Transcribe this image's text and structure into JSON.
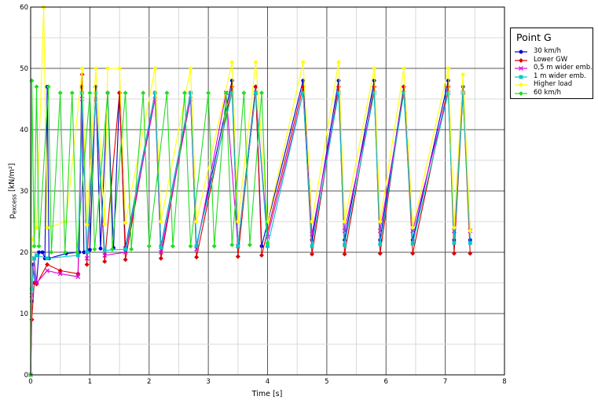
{
  "chart_data": {
    "type": "line",
    "xlabel": "Time [s]",
    "ylabel_main": "p",
    "ylabel_sub": "excess",
    "ylabel_unit": " [kN/m²]",
    "xlim": [
      0,
      8
    ],
    "ylim": [
      0,
      60
    ],
    "xticks": [
      0,
      1,
      2,
      3,
      4,
      5,
      6,
      7,
      8
    ],
    "yticks": [
      0,
      10,
      20,
      30,
      40,
      50,
      60
    ],
    "grid": true,
    "legend": {
      "title": "Point G",
      "placement": "right"
    },
    "series": [
      {
        "name": "30 km/h",
        "color": "#0000cc",
        "marker": "circle",
        "points": [
          [
            0,
            0
          ],
          [
            0.02,
            12
          ],
          [
            0.04,
            18
          ],
          [
            0.08,
            15
          ],
          [
            0.1,
            15
          ],
          [
            0.14,
            20
          ],
          [
            0.2,
            20
          ],
          [
            0.24,
            19
          ],
          [
            0.28,
            47
          ],
          [
            0.31,
            19
          ],
          [
            0.6,
            19.8
          ],
          [
            0.82,
            20
          ],
          [
            0.86,
            47
          ],
          [
            0.9,
            20
          ],
          [
            1.0,
            20.4
          ],
          [
            1.1,
            47
          ],
          [
            1.18,
            20.6
          ],
          [
            1.3,
            46
          ],
          [
            1.4,
            20.7
          ],
          [
            1.5,
            46
          ],
          [
            1.6,
            20.8
          ],
          [
            2.1,
            46
          ],
          [
            2.2,
            21
          ],
          [
            2.7,
            46
          ],
          [
            2.8,
            21
          ],
          [
            3.4,
            48
          ],
          [
            3.5,
            21
          ],
          [
            3.8,
            47
          ],
          [
            3.9,
            21
          ],
          [
            4.6,
            48
          ],
          [
            4.75,
            22
          ],
          [
            5.2,
            48
          ],
          [
            5.3,
            22
          ],
          [
            5.8,
            48
          ],
          [
            5.9,
            22
          ],
          [
            6.3,
            47
          ],
          [
            6.45,
            22
          ],
          [
            7.05,
            48
          ],
          [
            7.15,
            22
          ],
          [
            7.3,
            47
          ],
          [
            7.42,
            22
          ]
        ]
      },
      {
        "name": "Lower GW",
        "color": "#dd0000",
        "marker": "diamond",
        "points": [
          [
            0,
            0
          ],
          [
            0.02,
            9
          ],
          [
            0.06,
            15
          ],
          [
            0.1,
            14.8
          ],
          [
            0.28,
            18
          ],
          [
            0.5,
            17
          ],
          [
            0.8,
            16.5
          ],
          [
            0.87,
            49
          ],
          [
            0.95,
            18
          ],
          [
            1.1,
            46
          ],
          [
            1.25,
            18.5
          ],
          [
            1.5,
            46
          ],
          [
            1.6,
            18.8
          ],
          [
            2.1,
            46
          ],
          [
            2.2,
            19
          ],
          [
            2.7,
            46
          ],
          [
            2.8,
            19.2
          ],
          [
            3.4,
            47
          ],
          [
            3.5,
            19.3
          ],
          [
            3.8,
            47
          ],
          [
            3.9,
            19.5
          ],
          [
            4.6,
            47
          ],
          [
            4.75,
            19.7
          ],
          [
            5.2,
            47
          ],
          [
            5.3,
            19.7
          ],
          [
            5.8,
            47
          ],
          [
            5.9,
            19.8
          ],
          [
            6.3,
            47
          ],
          [
            6.45,
            19.8
          ],
          [
            7.05,
            47
          ],
          [
            7.15,
            19.8
          ],
          [
            7.3,
            46
          ],
          [
            7.42,
            19.8
          ]
        ]
      },
      {
        "name": "0,5 m wider emb.",
        "color": "#dd00dd",
        "marker": "cross",
        "points": [
          [
            0,
            0
          ],
          [
            0.02,
            13
          ],
          [
            0.06,
            19
          ],
          [
            0.1,
            15
          ],
          [
            0.28,
            17
          ],
          [
            0.5,
            16.5
          ],
          [
            0.8,
            16
          ],
          [
            0.87,
            45
          ],
          [
            0.95,
            19
          ],
          [
            1.1,
            45
          ],
          [
            1.25,
            19.5
          ],
          [
            1.6,
            20
          ],
          [
            2.1,
            45
          ],
          [
            2.2,
            20
          ],
          [
            2.7,
            45
          ],
          [
            2.8,
            20.5
          ],
          [
            3.3,
            46
          ],
          [
            3.5,
            21
          ],
          [
            3.8,
            46
          ],
          [
            4.0,
            22.5
          ],
          [
            4.6,
            46
          ],
          [
            4.75,
            23
          ],
          [
            5.2,
            46
          ],
          [
            5.3,
            23.5
          ],
          [
            5.8,
            46
          ],
          [
            5.9,
            23.5
          ],
          [
            6.3,
            46
          ],
          [
            6.45,
            23.5
          ],
          [
            7.05,
            46
          ],
          [
            7.15,
            23.5
          ],
          [
            7.3,
            46
          ],
          [
            7.42,
            23.5
          ]
        ]
      },
      {
        "name": "1 m wider emb.",
        "color": "#00c8c8",
        "marker": "square",
        "points": [
          [
            0,
            0
          ],
          [
            0.02,
            14
          ],
          [
            0.06,
            19
          ],
          [
            0.1,
            19.5
          ],
          [
            0.28,
            19
          ],
          [
            0.8,
            19.5
          ],
          [
            0.87,
            46
          ],
          [
            0.95,
            20
          ],
          [
            1.1,
            46
          ],
          [
            1.25,
            20.3
          ],
          [
            1.6,
            20.5
          ],
          [
            2.1,
            46
          ],
          [
            2.2,
            20.8
          ],
          [
            2.7,
            46
          ],
          [
            2.8,
            21
          ],
          [
            3.4,
            46
          ],
          [
            3.5,
            21
          ],
          [
            3.8,
            46
          ],
          [
            4.0,
            21
          ],
          [
            4.6,
            46
          ],
          [
            4.75,
            21
          ],
          [
            5.2,
            46
          ],
          [
            5.3,
            21.2
          ],
          [
            5.8,
            46
          ],
          [
            5.9,
            21.3
          ],
          [
            6.3,
            46
          ],
          [
            6.45,
            21.4
          ],
          [
            7.05,
            46
          ],
          [
            7.15,
            21.5
          ],
          [
            7.3,
            46
          ],
          [
            7.42,
            21.5
          ]
        ]
      },
      {
        "name": "Higher load",
        "color": "#ffff00",
        "marker": "circle",
        "points": [
          [
            0,
            0
          ],
          [
            0.02,
            22
          ],
          [
            0.1,
            24
          ],
          [
            0.22,
            60
          ],
          [
            0.28,
            24
          ],
          [
            0.6,
            25
          ],
          [
            0.87,
            50
          ],
          [
            0.95,
            24.5
          ],
          [
            1.1,
            50
          ],
          [
            1.25,
            24.6
          ],
          [
            1.3,
            50
          ],
          [
            1.5,
            50
          ],
          [
            1.6,
            24.8
          ],
          [
            2.1,
            50
          ],
          [
            2.2,
            25
          ],
          [
            2.7,
            50
          ],
          [
            2.8,
            25
          ],
          [
            3.4,
            51
          ],
          [
            3.5,
            25
          ],
          [
            3.8,
            51
          ],
          [
            4.0,
            25
          ],
          [
            4.6,
            51
          ],
          [
            4.75,
            25
          ],
          [
            5.2,
            51
          ],
          [
            5.3,
            25
          ],
          [
            5.8,
            50
          ],
          [
            5.9,
            25
          ],
          [
            6.3,
            50
          ],
          [
            6.45,
            24
          ],
          [
            7.05,
            50
          ],
          [
            7.15,
            24
          ],
          [
            7.3,
            49
          ],
          [
            7.42,
            23.5
          ]
        ]
      },
      {
        "name": "60 km/h",
        "color": "#22dd22",
        "marker": "diamond",
        "points": [
          [
            0,
            0
          ],
          [
            0.02,
            48
          ],
          [
            0.06,
            21
          ],
          [
            0.1,
            47
          ],
          [
            0.14,
            21
          ],
          [
            0.3,
            47
          ],
          [
            0.35,
            20
          ],
          [
            0.5,
            46
          ],
          [
            0.58,
            20
          ],
          [
            0.7,
            46
          ],
          [
            0.78,
            20
          ],
          [
            1.0,
            46
          ],
          [
            1.08,
            20.5
          ],
          [
            1.3,
            46
          ],
          [
            1.38,
            20.5
          ],
          [
            1.6,
            46
          ],
          [
            1.7,
            20.5
          ],
          [
            1.9,
            46
          ],
          [
            2.0,
            21
          ],
          [
            2.3,
            46
          ],
          [
            2.4,
            21
          ],
          [
            2.6,
            46
          ],
          [
            2.7,
            21
          ],
          [
            3.0,
            46
          ],
          [
            3.1,
            21
          ],
          [
            3.3,
            46
          ],
          [
            3.4,
            21.2
          ],
          [
            3.6,
            46
          ],
          [
            3.7,
            21.2
          ],
          [
            3.9,
            46
          ],
          [
            4.0,
            21.5
          ]
        ]
      }
    ]
  }
}
